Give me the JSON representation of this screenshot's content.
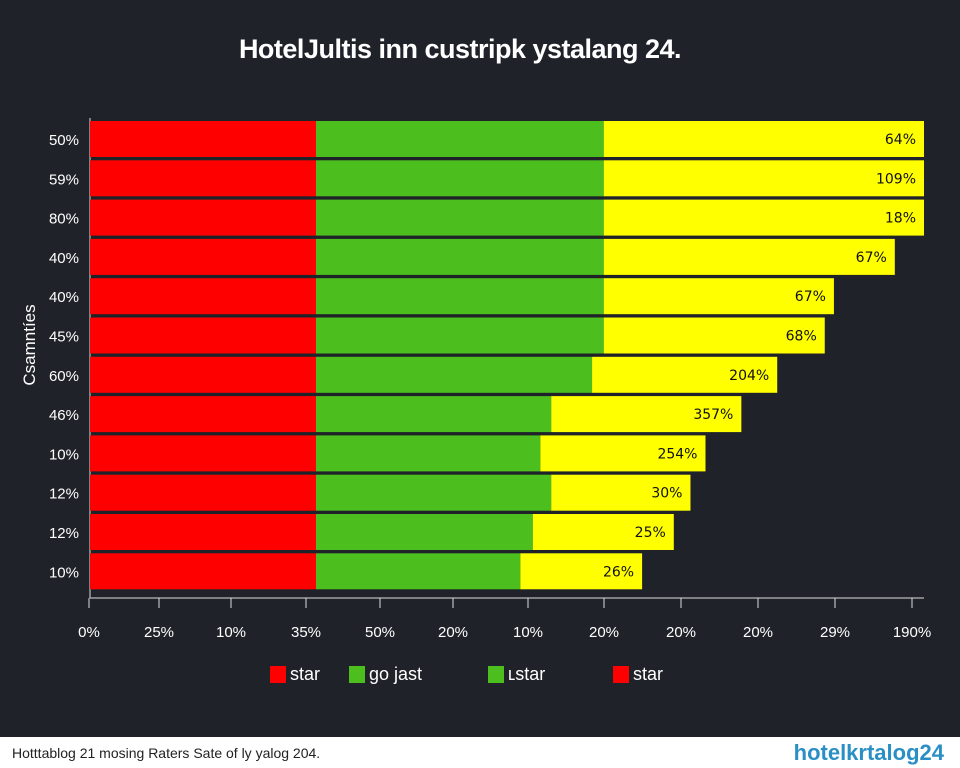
{
  "colors": {
    "background": "#1f2229",
    "red": "#ff0000",
    "green": "#4cbf1f",
    "yellow": "#ffff00",
    "logo": "#2a8fc4"
  },
  "chart_data": {
    "type": "bar",
    "orientation": "horizontal",
    "stacked": true,
    "title": "HotelJultis inn custripk ystalang 24.",
    "ylabel": "Csamntíes",
    "xlabel": "",
    "xlim": [
      0,
      100
    ],
    "grid": false,
    "legend_position": "bottom",
    "categories": [
      "50%",
      "59%",
      "80%",
      "40%",
      "40%",
      "45%",
      "60%",
      "46%",
      "10%",
      "12%",
      "12%",
      "10%"
    ],
    "x_tick_labels": [
      "0%",
      "25%",
      "10%",
      "35%",
      "50%",
      "20%",
      "10%",
      "20%",
      "20%",
      "20%",
      "29%",
      "190%"
    ],
    "series": [
      {
        "color": "#ff0000",
        "values": [
          27.1,
          27.1,
          27.1,
          27.1,
          27.1,
          27.1,
          27.1,
          27.1,
          27.1,
          27.1,
          27.1,
          27.1
        ]
      },
      {
        "color": "#4cbf1f",
        "values": [
          34.5,
          34.5,
          34.5,
          34.5,
          34.5,
          34.5,
          33.1,
          28.2,
          26.9,
          28.2,
          26.0,
          24.5
        ]
      },
      {
        "color": "#ffff00",
        "values": [
          38.4,
          38.4,
          38.4,
          34.9,
          27.6,
          26.5,
          22.2,
          22.8,
          19.8,
          16.7,
          16.9,
          14.6
        ]
      }
    ],
    "data_labels": [
      "64%",
      "109%",
      "18%",
      "67%",
      "67%",
      "68%",
      "204%",
      "357%",
      "254%",
      "30%",
      "25%",
      "26%"
    ],
    "legend": [
      {
        "label": "star",
        "color": "#ff0000"
      },
      {
        "label": "go jast",
        "color": "#4cbf1f"
      },
      {
        "label": "ʟstar",
        "color": "#4cbf1f"
      },
      {
        "label": "star",
        "color": "#ff0000"
      }
    ]
  },
  "footer": {
    "note": "Hotttablog 21 mosing Raters Sate of ly yalog 204.",
    "logo": "hotelkrtalog24"
  }
}
